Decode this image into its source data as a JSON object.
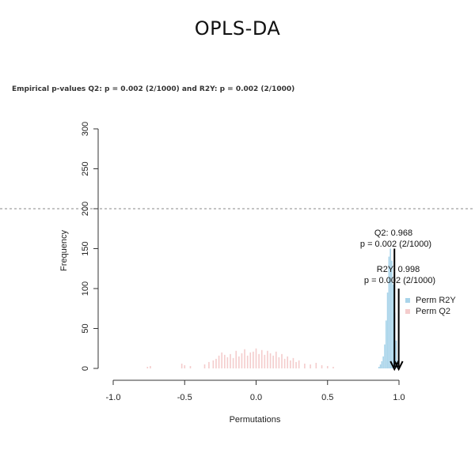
{
  "header": {
    "title": "OPLS-DA",
    "subtitle": "Empirical p-values Q2: p = 0.002 (2/1000) and R2Y: p = 0.002 (2/1000)"
  },
  "colors": {
    "perm_r2y": "#a9d4ea",
    "perm_q2": "#f4cccc",
    "axis": "#333333",
    "arrow": "#000000",
    "dashed_line": "#888888"
  },
  "chart_data": {
    "type": "histogram",
    "xlabel": "Permutations",
    "ylabel": "Frequency",
    "xlim": [
      -1.0,
      1.0
    ],
    "ylim": [
      0,
      300
    ],
    "x_ticks": [
      "-1.0",
      "-0.5",
      "0.0",
      "0.5",
      "1.0"
    ],
    "y_ticks": [
      "0",
      "50",
      "100",
      "150",
      "200",
      "250",
      "300"
    ],
    "reference_line_y": 200,
    "series": [
      {
        "name": "Perm R2Y",
        "color": "#a9d4ea",
        "bins": [
          {
            "x": 0.86,
            "count": 2
          },
          {
            "x": 0.87,
            "count": 5
          },
          {
            "x": 0.88,
            "count": 9
          },
          {
            "x": 0.89,
            "count": 15
          },
          {
            "x": 0.9,
            "count": 30
          },
          {
            "x": 0.91,
            "count": 60
          },
          {
            "x": 0.92,
            "count": 95
          },
          {
            "x": 0.93,
            "count": 140
          },
          {
            "x": 0.94,
            "count": 150
          },
          {
            "x": 0.95,
            "count": 135
          },
          {
            "x": 0.96,
            "count": 105
          },
          {
            "x": 0.97,
            "count": 70
          },
          {
            "x": 0.98,
            "count": 35
          },
          {
            "x": 0.99,
            "count": 10
          }
        ]
      },
      {
        "name": "Perm Q2",
        "color": "#f4cccc",
        "bins": [
          {
            "x": -0.76,
            "count": 2
          },
          {
            "x": -0.74,
            "count": 3
          },
          {
            "x": -0.52,
            "count": 6
          },
          {
            "x": -0.5,
            "count": 4
          },
          {
            "x": -0.46,
            "count": 3
          },
          {
            "x": -0.36,
            "count": 5
          },
          {
            "x": -0.33,
            "count": 8
          },
          {
            "x": -0.3,
            "count": 10
          },
          {
            "x": -0.28,
            "count": 12
          },
          {
            "x": -0.26,
            "count": 16
          },
          {
            "x": -0.24,
            "count": 20
          },
          {
            "x": -0.22,
            "count": 17
          },
          {
            "x": -0.2,
            "count": 14
          },
          {
            "x": -0.18,
            "count": 18
          },
          {
            "x": -0.16,
            "count": 13
          },
          {
            "x": -0.14,
            "count": 22
          },
          {
            "x": -0.12,
            "count": 15
          },
          {
            "x": -0.1,
            "count": 19
          },
          {
            "x": -0.08,
            "count": 24
          },
          {
            "x": -0.06,
            "count": 16
          },
          {
            "x": -0.04,
            "count": 20
          },
          {
            "x": -0.02,
            "count": 21
          },
          {
            "x": 0.0,
            "count": 25
          },
          {
            "x": 0.02,
            "count": 18
          },
          {
            "x": 0.04,
            "count": 23
          },
          {
            "x": 0.06,
            "count": 17
          },
          {
            "x": 0.08,
            "count": 22
          },
          {
            "x": 0.1,
            "count": 19
          },
          {
            "x": 0.12,
            "count": 16
          },
          {
            "x": 0.14,
            "count": 21
          },
          {
            "x": 0.16,
            "count": 14
          },
          {
            "x": 0.18,
            "count": 18
          },
          {
            "x": 0.2,
            "count": 12
          },
          {
            "x": 0.22,
            "count": 15
          },
          {
            "x": 0.24,
            "count": 10
          },
          {
            "x": 0.26,
            "count": 13
          },
          {
            "x": 0.28,
            "count": 8
          },
          {
            "x": 0.3,
            "count": 10
          },
          {
            "x": 0.34,
            "count": 6
          },
          {
            "x": 0.38,
            "count": 5
          },
          {
            "x": 0.42,
            "count": 7
          },
          {
            "x": 0.46,
            "count": 4
          },
          {
            "x": 0.5,
            "count": 3
          },
          {
            "x": 0.54,
            "count": 2
          }
        ]
      }
    ],
    "observed": [
      {
        "name": "Q2",
        "value": 0.968,
        "label_line1": "Q2: 0.968",
        "label_line2": "p = 0.002 (2/1000)",
        "arrow_top": 150
      },
      {
        "name": "R2Y",
        "value": 0.998,
        "label_line1": "R2Y: 0.998",
        "label_line2": "p = 0.002 (2/1000)",
        "arrow_top": 100
      }
    ],
    "legend": {
      "position": "right",
      "entries": [
        {
          "label": "Perm R2Y",
          "color": "#a9d4ea"
        },
        {
          "label": "Perm Q2",
          "color": "#f4cccc"
        }
      ]
    }
  }
}
